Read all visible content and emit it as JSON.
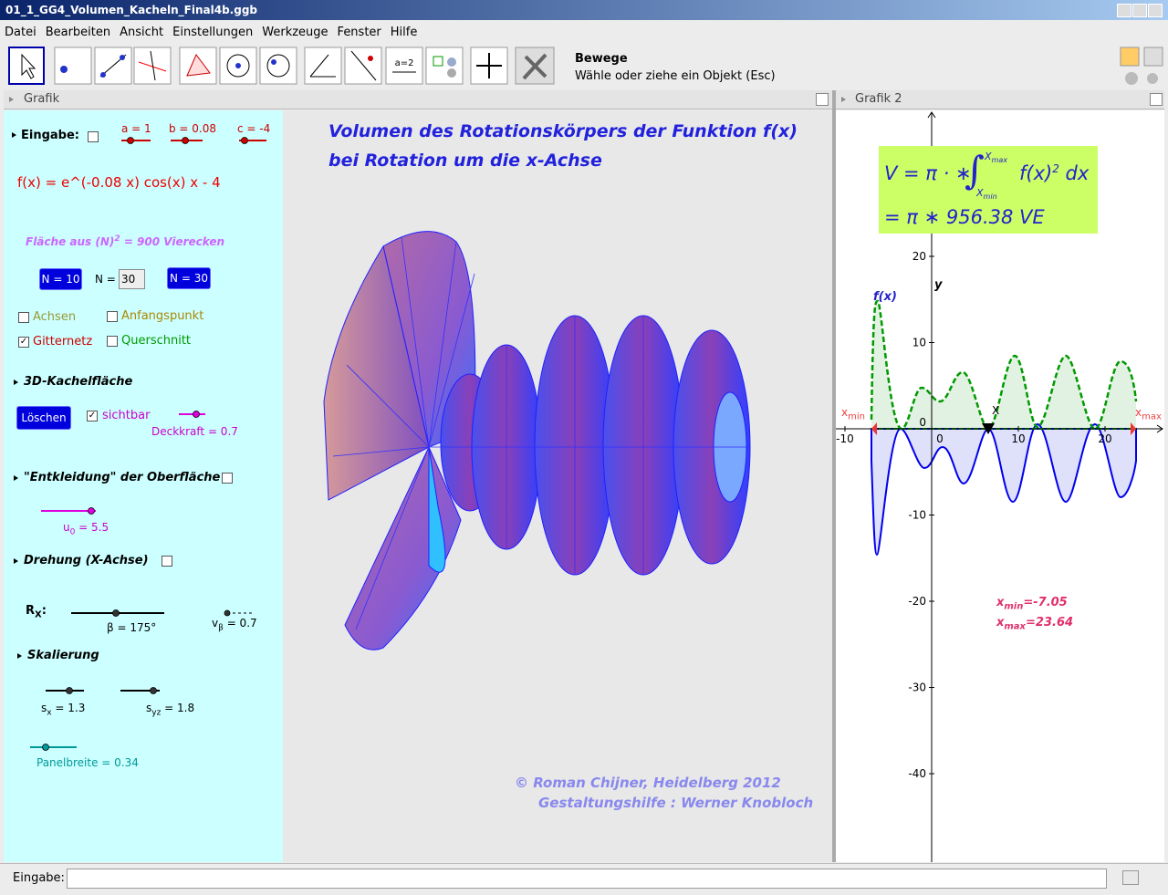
{
  "window": {
    "title": "01_1_GG4_Volumen_Kacheln_Final4b.ggb"
  },
  "menu": [
    "Datei",
    "Bearbeiten",
    "Ansicht",
    "Einstellungen",
    "Werkzeuge",
    "Fenster",
    "Hilfe"
  ],
  "toolbar": {
    "icon_text": "a=2",
    "tool_name": "Bewege",
    "tool_help": "Wähle oder ziehe ein Objekt (Esc)"
  },
  "views": [
    "Grafik",
    "Grafik 2"
  ],
  "panel": {
    "input_label": "Eingabe:",
    "sliders": [
      "a = 1",
      "b = 0.08",
      "c = -4"
    ],
    "function": "f(x) = e^(-0.08 x) cos(x) x - 4",
    "area": {
      "text": "Fläche aus",
      "term": "(N)",
      "exponent": "2",
      "rest": "= 900 Vierecken"
    },
    "n_buttons": [
      "N = 10",
      "N = 30"
    ],
    "n_label": "N =",
    "n_value": "30",
    "options": [
      "Achsen",
      "Anfangspunkt",
      "Gitternetz",
      "Querschnitt"
    ],
    "tiles": {
      "heading": "3D-Kachelfläche",
      "button": "Löschen",
      "visible": "sichtbar",
      "opacity": "Deckkraft = 0.7"
    },
    "undress": {
      "heading": "\"Entkleidung\" der Oberfläche",
      "u": "u",
      "u_sub": "0",
      "u_value": "= 5.5"
    },
    "rotation": {
      "heading": "Drehung (X-Achse)",
      "r": "R",
      "r_sub": "X",
      "r_colon": ":",
      "beta": "β = 175°",
      "v": "v",
      "v_sub": "β",
      "v_value": "= 0.7"
    },
    "scaling": {
      "heading": "Skalierung",
      "sx": "s",
      "sx_sub": "x",
      "sx_value": "= 1.3",
      "syz": "s",
      "syz_sub": "yz",
      "syz_value": "= 1.8"
    },
    "panel_width": "Panelbreite = 0.34"
  },
  "center": {
    "title": [
      "Volumen des Rotationskörpers der Funktion f(x)",
      "bei Rotation um die x-Achse"
    ],
    "credits": [
      "© Roman Chijner, Heidelberg 2012",
      "Gestaltungshilfe : Werner Knobloch"
    ]
  },
  "graph2": {
    "formula": {
      "lhs": "V = π · ∗",
      "integral": "∫",
      "upper": "X",
      "upper_sub": "max",
      "lower": "X",
      "lower_sub": "min",
      "integrand": "f(x)",
      "power": "2",
      "dx": "dx",
      "result": "= π ∗ 956.38 VE"
    },
    "xlim": [
      -11.05,
      26.84
    ],
    "ylim": [
      -50.26,
      36.93
    ],
    "xticks": [
      -10,
      0,
      10,
      20
    ],
    "yticks": [
      -40,
      -30,
      -20,
      -10,
      0,
      10,
      20
    ],
    "curve_label": "f(x)",
    "y_label": "y",
    "point_label": "X",
    "xmin_label": {
      "base": "x",
      "sub": "min"
    },
    "xmax_label": {
      "base": "x",
      "sub": "max"
    },
    "xmin_text": {
      "base": "x",
      "sub": "min",
      "value": "=-7.05"
    },
    "xmax_text": {
      "base": "x",
      "sub": "max",
      "value": "=23.64"
    }
  },
  "input_bar": {
    "label": "Eingabe:"
  }
}
